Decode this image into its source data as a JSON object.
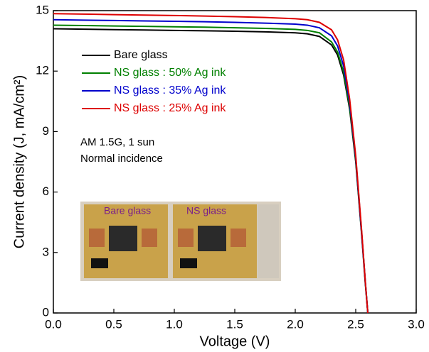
{
  "chart_data": {
    "type": "line",
    "xlabel": "Voltage (V)",
    "ylabel": "Current density (J, mA/cm²)",
    "x": [
      0,
      0.25,
      0.5,
      0.75,
      1.0,
      1.25,
      1.5,
      1.75,
      2.0,
      2.1,
      2.2,
      2.3,
      2.35,
      2.4,
      2.45,
      2.5,
      2.55,
      2.58,
      2.6
    ],
    "series": [
      {
        "name": "Bare glass",
        "color": "#000000",
        "values": [
          14.1,
          14.08,
          14.06,
          14.04,
          14.02,
          14.0,
          13.98,
          13.95,
          13.9,
          13.85,
          13.72,
          13.3,
          12.8,
          11.8,
          10.1,
          7.5,
          3.8,
          1.4,
          0
        ]
      },
      {
        "name": "NS glass : 50% Ag ink",
        "color": "#008000",
        "values": [
          14.28,
          14.26,
          14.24,
          14.22,
          14.2,
          14.18,
          14.15,
          14.12,
          14.07,
          14.02,
          13.9,
          13.45,
          12.95,
          11.95,
          10.2,
          7.6,
          3.9,
          1.5,
          0
        ]
      },
      {
        "name": "NS glass : 35% Ag ink",
        "color": "#0000cc",
        "values": [
          14.55,
          14.53,
          14.51,
          14.49,
          14.47,
          14.45,
          14.42,
          14.38,
          14.33,
          14.28,
          14.15,
          13.75,
          13.25,
          12.25,
          10.4,
          7.7,
          3.9,
          1.5,
          0
        ]
      },
      {
        "name": "NS glass : 25% Ag ink",
        "color": "#dd0000",
        "values": [
          14.85,
          14.83,
          14.8,
          14.78,
          14.76,
          14.73,
          14.7,
          14.66,
          14.6,
          14.55,
          14.42,
          14.05,
          13.55,
          12.55,
          10.6,
          7.8,
          4.0,
          1.5,
          0
        ]
      }
    ],
    "xlim": [
      0,
      3
    ],
    "xticks": [
      {
        "value": 0,
        "label": "0.0"
      },
      0.5,
      {
        "value": 1,
        "label": "1.0"
      },
      1.5,
      {
        "value": 2,
        "label": "2.0"
      },
      2.5,
      {
        "value": 3,
        "label": "3.0"
      }
    ],
    "ylim": [
      0,
      15
    ],
    "yticks": [
      0,
      3,
      6,
      9,
      12,
      15
    ],
    "legend": "upper-left",
    "annotations": [
      "AM 1.5G, 1 sun",
      "Normal incidence"
    ],
    "inset_labels": [
      "Bare glass",
      "NS glass"
    ]
  }
}
